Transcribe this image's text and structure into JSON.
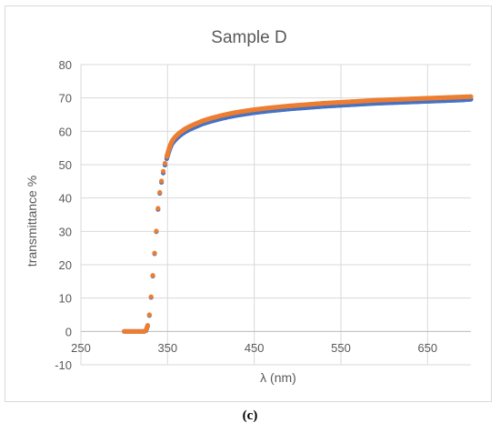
{
  "caption": "(c)",
  "chart_data": {
    "type": "scatter",
    "title": "Sample D",
    "xlabel": "λ (nm)",
    "ylabel": "transmittance %",
    "xlim": [
      250,
      700
    ],
    "ylim": [
      -10,
      80
    ],
    "x_ticks": [
      250,
      350,
      450,
      550,
      650
    ],
    "y_ticks": [
      -10,
      0,
      10,
      20,
      30,
      40,
      50,
      60,
      70,
      80
    ],
    "grid": true,
    "legend": "none",
    "colors": {
      "series_1": "#4472c4",
      "series_2": "#ed7d31",
      "grid": "#d9d9d9",
      "text": "#595959"
    },
    "series": [
      {
        "x": [
          300,
          305,
          310,
          315,
          320,
          323,
          325,
          327,
          329,
          331,
          333,
          335,
          337,
          339,
          341,
          343,
          345,
          347,
          349,
          351,
          353,
          355,
          358,
          361,
          365,
          370,
          375,
          380,
          390,
          400,
          410,
          420,
          430,
          440,
          450,
          470,
          490,
          510,
          530,
          550,
          570,
          590,
          610,
          630,
          650,
          670,
          690,
          700
        ],
        "y": [
          0,
          0,
          0,
          0,
          0,
          0,
          0.2,
          1.6,
          4.8,
          10.2,
          16.6,
          23.3,
          29.9,
          36.6,
          41.4,
          44.7,
          47.5,
          49.9,
          51.8,
          53.5,
          55.0,
          56.2,
          57.2,
          58.0,
          58.9,
          59.8,
          60.5,
          61.1,
          62.2,
          63.0,
          63.7,
          64.3,
          64.8,
          65.2,
          65.6,
          66.2,
          66.7,
          67.1,
          67.5,
          67.8,
          68.1,
          68.4,
          68.6,
          68.8,
          69.0,
          69.2,
          69.4,
          69.6
        ]
      },
      {
        "x": [
          300,
          305,
          310,
          315,
          320,
          323,
          325,
          327,
          329,
          331,
          333,
          335,
          337,
          339,
          341,
          343,
          345,
          347,
          349,
          351,
          353,
          355,
          358,
          361,
          365,
          370,
          375,
          380,
          390,
          400,
          410,
          420,
          430,
          440,
          450,
          470,
          490,
          510,
          530,
          550,
          570,
          590,
          610,
          630,
          650,
          670,
          690,
          700
        ],
        "y": [
          0,
          0,
          0,
          0,
          0,
          0,
          0.3,
          1.8,
          5.0,
          10.4,
          16.8,
          23.5,
          30.1,
          36.9,
          41.7,
          45.1,
          48.0,
          50.4,
          52.4,
          54.2,
          55.8,
          57.0,
          58.1,
          58.9,
          59.8,
          60.7,
          61.4,
          62.0,
          63.1,
          63.9,
          64.6,
          65.2,
          65.7,
          66.1,
          66.5,
          67.1,
          67.6,
          68.0,
          68.4,
          68.7,
          69.0,
          69.3,
          69.5,
          69.7,
          69.9,
          70.1,
          70.3,
          70.4
        ]
      }
    ]
  }
}
